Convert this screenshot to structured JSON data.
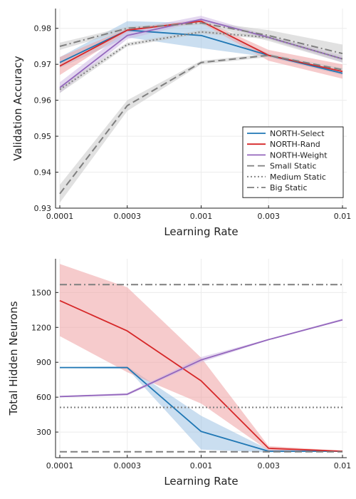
{
  "chart_data": [
    {
      "type": "line",
      "xlabel": "Learning Rate",
      "ylabel": "Validation Accuracy",
      "x_ticks": [
        "0.0001",
        "0.0003",
        "0.001",
        "0.003",
        "0.01"
      ],
      "y_ticks": [
        "0.93",
        "0.94",
        "0.95",
        "0.96",
        "0.97",
        "0.98"
      ],
      "ylim": [
        0.93,
        0.9855
      ],
      "x_scale": "log",
      "grid": true,
      "legend_position": "bottom-right",
      "series": [
        {
          "name": "NORTH-Select",
          "values": [
            0.9705,
            0.9795,
            0.978,
            0.9725,
            0.9675
          ],
          "lower": [
            0.969,
            0.9775,
            0.9745,
            0.972,
            0.967
          ],
          "upper": [
            0.972,
            0.982,
            0.9815,
            0.973,
            0.968
          ]
        },
        {
          "name": "NORTH-Rand",
          "values": [
            0.9695,
            0.9795,
            0.982,
            0.9725,
            0.968
          ],
          "lower": [
            0.967,
            0.979,
            0.9815,
            0.971,
            0.966
          ],
          "upper": [
            0.972,
            0.98,
            0.9825,
            0.974,
            0.97
          ]
        },
        {
          "name": "NORTH-Weight",
          "values": [
            0.9635,
            0.978,
            0.9825,
            0.9775,
            0.9715
          ],
          "lower": [
            0.962,
            0.977,
            0.982,
            0.977,
            0.9705
          ],
          "upper": [
            0.965,
            0.9795,
            0.9835,
            0.978,
            0.9725
          ]
        },
        {
          "name": "Small Static",
          "values": [
            0.934,
            0.9585,
            0.9705,
            0.9725,
            0.9685
          ],
          "lower": [
            0.9315,
            0.957,
            0.97,
            0.972,
            0.968
          ],
          "upper": [
            0.9365,
            0.96,
            0.971,
            0.973,
            0.969
          ]
        },
        {
          "name": "Medium Static",
          "values": [
            0.963,
            0.9755,
            0.979,
            0.9775,
            0.9715
          ],
          "lower": [
            0.962,
            0.975,
            0.9785,
            0.977,
            0.971
          ],
          "upper": [
            0.964,
            0.976,
            0.9795,
            0.978,
            0.972
          ]
        },
        {
          "name": "Big Static",
          "values": [
            0.975,
            0.98,
            0.9815,
            0.978,
            0.973
          ],
          "lower": [
            0.974,
            0.9795,
            0.981,
            0.9765,
            0.9705
          ],
          "upper": [
            0.976,
            0.9805,
            0.982,
            0.9795,
            0.9755
          ]
        }
      ]
    },
    {
      "type": "line",
      "xlabel": "Learning Rate",
      "ylabel": "Total Hidden Neurons",
      "x_ticks": [
        "0.0001",
        "0.0003",
        "0.001",
        "0.003",
        "0.01"
      ],
      "y_ticks": [
        "300",
        "600",
        "900",
        "1200",
        "1500"
      ],
      "ylim": [
        80,
        1790
      ],
      "x_scale": "log",
      "grid": true,
      "series": [
        {
          "name": "NORTH-Select",
          "values": [
            855,
            855,
            305,
            135,
            135
          ],
          "lower": [
            850,
            845,
            150,
            125,
            130
          ],
          "upper": [
            860,
            865,
            440,
            150,
            140
          ]
        },
        {
          "name": "NORTH-Rand",
          "values": [
            1430,
            1170,
            740,
            160,
            135
          ],
          "lower": [
            1125,
            815,
            545,
            140,
            130
          ],
          "upper": [
            1745,
            1545,
            940,
            180,
            140
          ]
        },
        {
          "name": "NORTH-Weight",
          "values": [
            605,
            625,
            920,
            1095,
            1265
          ],
          "lower": [
            600,
            615,
            900,
            1090,
            1260
          ],
          "upper": [
            610,
            635,
            945,
            1100,
            1275
          ]
        },
        {
          "name": "Small Static",
          "values": [
            130,
            130,
            130,
            130,
            130
          ]
        },
        {
          "name": "Medium Static",
          "values": [
            512,
            512,
            512,
            512,
            512
          ]
        },
        {
          "name": "Big Static",
          "values": [
            1568,
            1568,
            1568,
            1568,
            1568
          ]
        }
      ]
    }
  ],
  "styles": {
    "NORTH-Select": {
      "color": "#1f77b4",
      "dash": "solid",
      "band": "#9ec3e4"
    },
    "NORTH-Rand": {
      "color": "#d62728",
      "dash": "solid",
      "band": "#eea0a2"
    },
    "NORTH-Weight": {
      "color": "#9467bd",
      "dash": "solid",
      "band": "#cdb8e4"
    },
    "Small Static": {
      "color": "#7f7f7f",
      "dash": "dash",
      "band": "#c8c8c8"
    },
    "Medium Static": {
      "color": "#7f7f7f",
      "dash": "dot",
      "band": "#c8c8c8"
    },
    "Big Static": {
      "color": "#7f7f7f",
      "dash": "dashdot",
      "band": "#c8c8c8"
    }
  }
}
